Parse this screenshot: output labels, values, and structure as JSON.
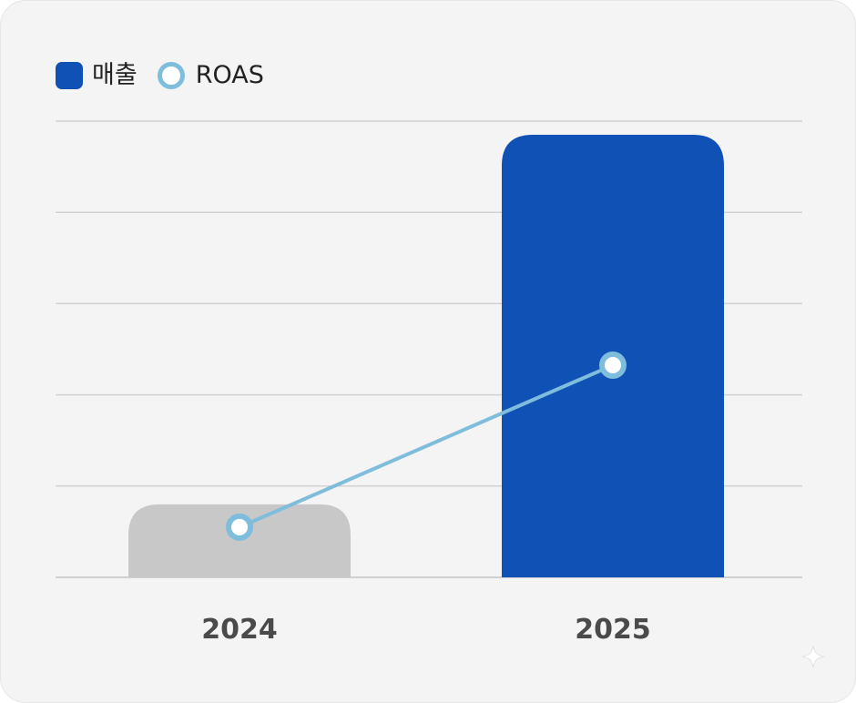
{
  "chart_data": {
    "type": "bar",
    "categories": [
      "2024",
      "2025"
    ],
    "series": [
      {
        "name": "매출",
        "kind": "bar",
        "values": [
          16,
          97
        ],
        "colors": [
          "#c8c8c8",
          "#1051b5"
        ]
      },
      {
        "name": "ROAS",
        "kind": "line",
        "values": [
          11,
          46.5
        ],
        "color": "#7fbddd"
      }
    ],
    "ylim": [
      0,
      100
    ],
    "gridlines": 5,
    "grid": true,
    "legend_position": "top-left",
    "title": "",
    "xlabel": "",
    "ylabel": ""
  },
  "legend": {
    "items": [
      {
        "label": "매출",
        "color": "#1051b5",
        "marker": "bar"
      },
      {
        "label": "ROAS",
        "color": "#7fbddd",
        "marker": "ring"
      }
    ]
  },
  "icons": {
    "corner": "sparkle-icon"
  }
}
